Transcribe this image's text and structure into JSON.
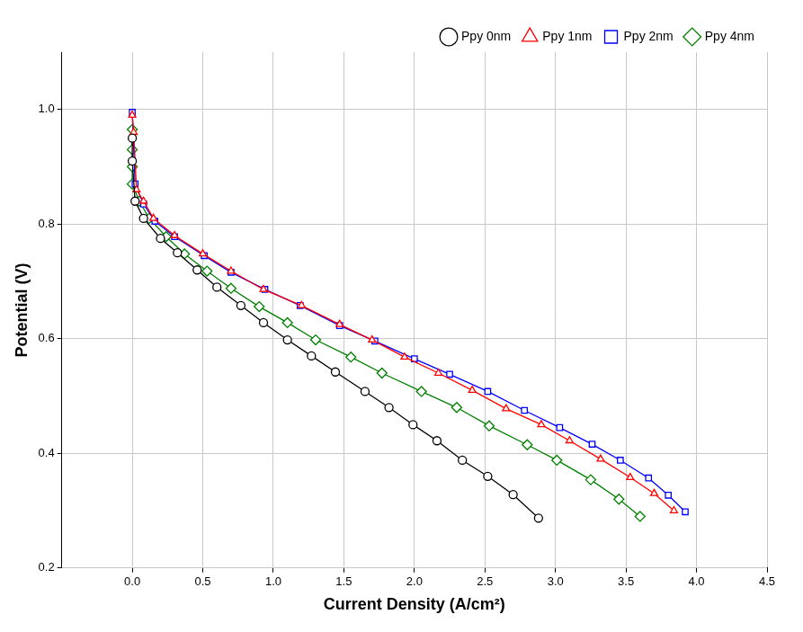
{
  "chart_data": {
    "type": "line",
    "x_label": "Current Density (A/cm²)",
    "y_label": "Potential (V)",
    "xlim": [
      -0.5,
      4.5
    ],
    "xticks": [
      {
        "value": 0,
        "label": "0.0"
      },
      0.5,
      {
        "value": 1,
        "label": "1.0"
      },
      1.5,
      {
        "value": 2,
        "label": "2.0"
      },
      2.5,
      {
        "value": 3,
        "label": "3.0"
      },
      3.5,
      {
        "value": 4,
        "label": "4.0"
      },
      4.5
    ],
    "ylim": [
      0.2,
      1.1
    ],
    "yticks": [
      0.2,
      0.4,
      0.6,
      0.8,
      {
        "value": 1,
        "label": "1.0"
      }
    ],
    "grid": true,
    "legend": "upper right",
    "series": [
      {
        "name": "Ppy 0nm",
        "color": "#000000",
        "marker": "circle",
        "x": [
          0.0,
          0.0,
          0.02,
          0.08,
          0.2,
          0.32,
          0.46,
          0.6,
          0.77,
          0.93,
          1.1,
          1.27,
          1.44,
          1.65,
          1.82,
          1.99,
          2.16,
          2.34,
          2.52,
          2.7,
          2.88
        ],
        "values": [
          0.95,
          0.91,
          0.84,
          0.81,
          0.775,
          0.75,
          0.72,
          0.69,
          0.658,
          0.628,
          0.598,
          0.57,
          0.542,
          0.508,
          0.48,
          0.45,
          0.422,
          0.388,
          0.36,
          0.328,
          0.287
        ]
      },
      {
        "name": "Ppy 1nm",
        "color": "#ff0000",
        "marker": "triangle",
        "x": [
          0.0,
          0.01,
          0.03,
          0.08,
          0.15,
          0.3,
          0.5,
          0.7,
          0.93,
          1.2,
          1.47,
          1.7,
          1.93,
          2.17,
          2.41,
          2.65,
          2.9,
          3.1,
          3.32,
          3.53,
          3.7,
          3.84
        ],
        "values": [
          0.99,
          0.96,
          0.86,
          0.84,
          0.81,
          0.78,
          0.748,
          0.718,
          0.686,
          0.658,
          0.625,
          0.598,
          0.568,
          0.54,
          0.51,
          0.478,
          0.45,
          0.422,
          0.39,
          0.358,
          0.33,
          0.3
        ]
      },
      {
        "name": "Ppy 2nm",
        "color": "#0000ff",
        "marker": "square",
        "x": [
          0.0,
          0.02,
          0.08,
          0.16,
          0.3,
          0.51,
          0.7,
          0.94,
          1.19,
          1.47,
          1.72,
          2.0,
          2.25,
          2.52,
          2.78,
          3.03,
          3.26,
          3.46,
          3.66,
          3.8,
          3.92
        ],
        "values": [
          0.995,
          0.87,
          0.835,
          0.805,
          0.778,
          0.745,
          0.716,
          0.686,
          0.658,
          0.623,
          0.596,
          0.565,
          0.538,
          0.508,
          0.475,
          0.445,
          0.416,
          0.388,
          0.357,
          0.327,
          0.298
        ]
      },
      {
        "name": "Ppy 4nm",
        "color": "#008000",
        "marker": "diamond",
        "x": [
          0.0,
          0.0,
          0.0,
          0.0,
          0.05,
          0.12,
          0.24,
          0.37,
          0.53,
          0.7,
          0.9,
          1.1,
          1.3,
          1.55,
          1.77,
          2.05,
          2.3,
          2.53,
          2.8,
          3.01,
          3.25,
          3.45,
          3.6
        ],
        "values": [
          0.965,
          0.93,
          0.9,
          0.87,
          0.84,
          0.81,
          0.778,
          0.748,
          0.718,
          0.688,
          0.656,
          0.628,
          0.598,
          0.568,
          0.54,
          0.508,
          0.48,
          0.448,
          0.415,
          0.388,
          0.354,
          0.32,
          0.29
        ]
      }
    ]
  }
}
